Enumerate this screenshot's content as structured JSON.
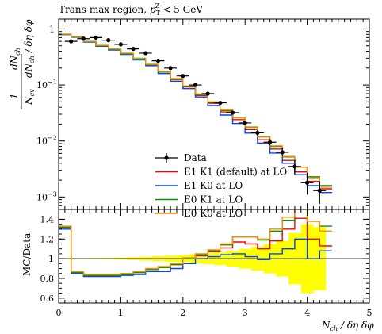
{
  "chart_data": [
    {
      "type": "line",
      "panel": "main",
      "title": "Trans-max region, p_T^Z < 5 GeV",
      "ylabel": "1/N_ev dN_ch/dη dφ",
      "yscale": "log",
      "ylim": [
        0.0006,
        1.5
      ],
      "xlim": [
        0,
        5
      ],
      "ytick_labels": [
        "1",
        "10^{-1}",
        "10^{-2}",
        "10^{-3}"
      ],
      "bin_edges": [
        0.0,
        0.2,
        0.4,
        0.6,
        0.8,
        1.0,
        1.2,
        1.4,
        1.6,
        1.8,
        2.0,
        2.2,
        2.4,
        2.6,
        2.8,
        3.0,
        3.2,
        3.4,
        3.6,
        3.8,
        4.0,
        4.2,
        4.4
      ],
      "data_points": {
        "name": "Data",
        "x": [
          0.2,
          0.4,
          0.6,
          0.8,
          1.0,
          1.2,
          1.4,
          1.6,
          1.8,
          2.0,
          2.2,
          2.4,
          2.6,
          2.8,
          3.0,
          3.2,
          3.4,
          3.6,
          3.8,
          4.0,
          4.2
        ],
        "y": [
          0.6,
          0.67,
          0.7,
          0.63,
          0.53,
          0.44,
          0.37,
          0.27,
          0.2,
          0.145,
          0.1,
          0.07,
          0.048,
          0.032,
          0.021,
          0.014,
          0.0095,
          0.0063,
          0.0035,
          0.0018,
          0.0013
        ],
        "y_err_low": [
          0.56,
          0.63,
          0.66,
          0.59,
          0.5,
          0.41,
          0.35,
          0.255,
          0.19,
          0.137,
          0.094,
          0.066,
          0.045,
          0.0298,
          0.0193,
          0.0125,
          0.0083,
          0.0053,
          0.0026,
          0.0011,
          0.00075
        ],
        "y_err_high": [
          0.64,
          0.71,
          0.74,
          0.67,
          0.56,
          0.47,
          0.39,
          0.285,
          0.21,
          0.153,
          0.106,
          0.074,
          0.051,
          0.034,
          0.0228,
          0.0155,
          0.0108,
          0.0075,
          0.0046,
          0.0027,
          0.0019
        ]
      },
      "series": [
        {
          "name": "E1 K1 (default) at LO",
          "color": "#ff0000",
          "values": [
            0.8,
            0.72,
            0.59,
            0.5,
            0.43,
            0.36,
            0.29,
            0.23,
            0.17,
            0.125,
            0.092,
            0.065,
            0.047,
            0.033,
            0.024,
            0.016,
            0.0105,
            0.0072,
            0.0045,
            0.0028,
            0.0019,
            0.0014
          ]
        },
        {
          "name": "E1 K0 at LO",
          "color": "#0044ff",
          "values": [
            0.79,
            0.71,
            0.58,
            0.49,
            0.42,
            0.35,
            0.28,
            0.22,
            0.16,
            0.117,
            0.086,
            0.061,
            0.043,
            0.029,
            0.0205,
            0.0138,
            0.0092,
            0.0061,
            0.004,
            0.0025,
            0.0016,
            0.0012
          ]
        },
        {
          "name": "E0 K1 at LO",
          "color": "#009900",
          "values": [
            0.8,
            0.72,
            0.59,
            0.5,
            0.43,
            0.36,
            0.29,
            0.23,
            0.17,
            0.127,
            0.094,
            0.067,
            0.049,
            0.035,
            0.026,
            0.0175,
            0.0118,
            0.008,
            0.0052,
            0.0034,
            0.0023,
            0.0016
          ]
        },
        {
          "name": "E0 K0 at LO",
          "color": "#ff8c00",
          "values": [
            0.81,
            0.73,
            0.6,
            0.51,
            0.44,
            0.37,
            0.3,
            0.235,
            0.175,
            0.13,
            0.096,
            0.069,
            0.05,
            0.036,
            0.026,
            0.0178,
            0.012,
            0.0082,
            0.0053,
            0.0034,
            0.0022,
            0.0015
          ]
        }
      ],
      "legend": [
        "Data",
        "E1 K1 (default) at LO",
        "E1 K0 at LO",
        "E0 K1 at LO",
        "E0 K0 at LO"
      ],
      "legend_placement": "bottom-center"
    },
    {
      "type": "line",
      "panel": "ratio",
      "ylabel": "MC/Data",
      "xlabel": "N_ch / δη δφ",
      "xlim": [
        0,
        5
      ],
      "ylim": [
        0.55,
        1.5
      ],
      "xtick_labels": [
        "0",
        "1",
        "2",
        "3",
        "4",
        "5"
      ],
      "ytick_labels": [
        "0.6",
        "0.8",
        "1",
        "1.2",
        "1.4"
      ],
      "bin_edges": [
        0.0,
        0.2,
        0.4,
        0.6,
        0.8,
        1.0,
        1.2,
        1.4,
        1.6,
        1.8,
        2.0,
        2.2,
        2.4,
        2.6,
        2.8,
        3.0,
        3.2,
        3.4,
        3.6,
        3.8,
        4.0,
        4.2,
        4.4
      ],
      "reference_line": 1.0,
      "data_uncertainty_band": {
        "color": "#ffff00",
        "x": [
          0.2,
          0.4,
          0.6,
          0.8,
          1.0,
          1.2,
          1.4,
          1.6,
          1.8,
          2.0,
          2.2,
          2.4,
          2.6,
          2.8,
          3.0,
          3.2,
          3.4,
          3.6,
          3.8,
          4.0,
          4.2
        ],
        "low": [
          0.995,
          0.995,
          0.994,
          0.993,
          0.99,
          0.985,
          0.98,
          0.975,
          0.97,
          0.965,
          0.955,
          0.945,
          0.935,
          0.92,
          0.9,
          0.88,
          0.85,
          0.82,
          0.74,
          0.65,
          0.68
        ],
        "high": [
          1.005,
          1.005,
          1.006,
          1.007,
          1.01,
          1.015,
          1.02,
          1.025,
          1.03,
          1.035,
          1.045,
          1.055,
          1.065,
          1.08,
          1.1,
          1.12,
          1.15,
          1.18,
          1.26,
          1.35,
          1.32
        ]
      },
      "series": [
        {
          "name": "E1 K1 (default) at LO",
          "color": "#ff0000",
          "values": [
            1.32,
            0.86,
            0.83,
            0.83,
            0.83,
            0.84,
            0.86,
            0.89,
            0.91,
            0.94,
            1.0,
            1.03,
            1.07,
            1.11,
            1.17,
            1.15,
            1.1,
            1.18,
            1.3,
            1.41,
            1.2,
            1.13
          ]
        },
        {
          "name": "E1 K0 at LO",
          "color": "#0044ff",
          "values": [
            1.3,
            0.85,
            0.82,
            0.82,
            0.82,
            0.83,
            0.84,
            0.87,
            0.87,
            0.9,
            0.95,
            1.0,
            1.02,
            1.04,
            1.05,
            1.02,
            0.99,
            1.05,
            1.1,
            1.2,
            1.0,
            1.08
          ]
        },
        {
          "name": "E0 K1 at LO",
          "color": "#009900",
          "values": [
            1.32,
            0.86,
            0.83,
            0.83,
            0.83,
            0.84,
            0.86,
            0.89,
            0.91,
            0.94,
            1.0,
            1.04,
            1.08,
            1.14,
            1.22,
            1.22,
            1.19,
            1.28,
            1.39,
            1.52,
            1.38,
            1.33
          ]
        },
        {
          "name": "E0 K0 at LO",
          "color": "#ff8c00",
          "values": [
            1.33,
            0.87,
            0.84,
            0.84,
            0.84,
            0.85,
            0.87,
            0.9,
            0.92,
            0.95,
            1.01,
            1.05,
            1.09,
            1.15,
            1.22,
            1.22,
            1.2,
            1.3,
            1.42,
            1.53,
            1.38,
            1.28
          ]
        }
      ]
    }
  ]
}
